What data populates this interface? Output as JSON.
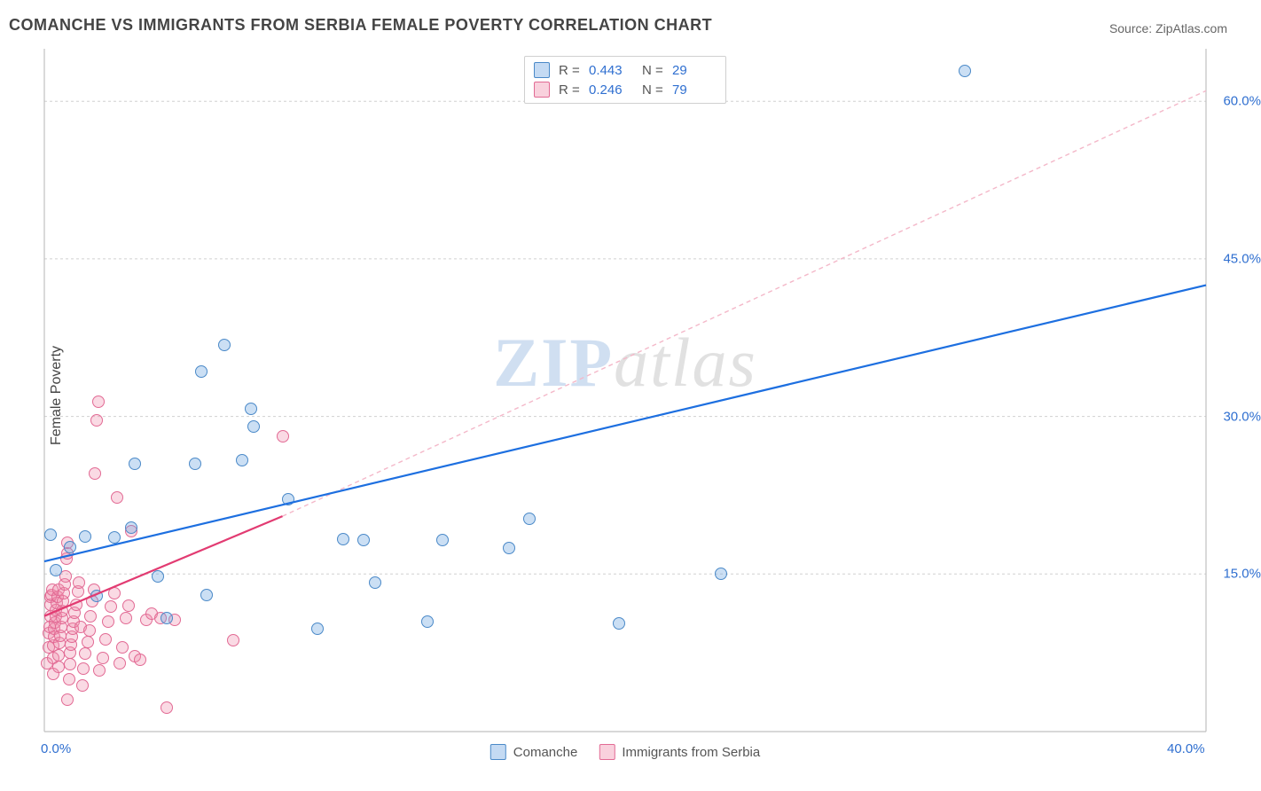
{
  "title": "COMANCHE VS IMMIGRANTS FROM SERBIA FEMALE POVERTY CORRELATION CHART",
  "source_prefix": "Source: ",
  "source_name": "ZipAtlas.com",
  "ylabel": "Female Poverty",
  "watermark_a": "ZIP",
  "watermark_b": "atlas",
  "chart": {
    "type": "scatter",
    "xlim": [
      0,
      40
    ],
    "ylim": [
      0,
      65
    ],
    "yticks": [
      {
        "v": 15,
        "label": "15.0%"
      },
      {
        "v": 30,
        "label": "30.0%"
      },
      {
        "v": 45,
        "label": "45.0%"
      },
      {
        "v": 60,
        "label": "60.0%"
      }
    ],
    "xticks": [
      {
        "v": 0,
        "label": "0.0%"
      },
      {
        "v": 40,
        "label": "40.0%"
      }
    ],
    "series": [
      {
        "name": "Comanche",
        "color_fill": "rgba(107,163,224,0.35)",
        "color_stroke": "#4a89c8",
        "marker_class": "pt-blue",
        "r_value": "0.443",
        "n_value": "29",
        "regression": {
          "x1": 0,
          "y1": 16.2,
          "x2": 40,
          "y2": 42.5,
          "color": "#1d6fe0",
          "width": 2.2,
          "dash": ""
        },
        "extrapolation": null,
        "points": [
          [
            0.2,
            18.7
          ],
          [
            0.4,
            15.4
          ],
          [
            0.9,
            17.6
          ],
          [
            1.4,
            18.6
          ],
          [
            2.4,
            18.5
          ],
          [
            3.0,
            19.4
          ],
          [
            3.1,
            25.5
          ],
          [
            3.9,
            14.8
          ],
          [
            1.8,
            12.9
          ],
          [
            4.2,
            10.8
          ],
          [
            5.2,
            25.5
          ],
          [
            5.4,
            34.3
          ],
          [
            5.6,
            13.0
          ],
          [
            6.2,
            36.8
          ],
          [
            6.8,
            25.8
          ],
          [
            7.1,
            30.7
          ],
          [
            7.2,
            29.0
          ],
          [
            8.4,
            22.1
          ],
          [
            9.4,
            9.8
          ],
          [
            10.3,
            18.3
          ],
          [
            11.0,
            18.2
          ],
          [
            11.4,
            14.2
          ],
          [
            13.2,
            10.5
          ],
          [
            13.7,
            18.2
          ],
          [
            16.0,
            17.5
          ],
          [
            16.7,
            20.3
          ],
          [
            19.8,
            10.3
          ],
          [
            23.3,
            15.0
          ],
          [
            31.7,
            62.9
          ]
        ]
      },
      {
        "name": "Immigrants from Serbia",
        "color_fill": "rgba(240,140,170,0.32)",
        "color_stroke": "#e26a94",
        "marker_class": "pt-pink",
        "r_value": "0.246",
        "n_value": "79",
        "regression": {
          "x1": 0,
          "y1": 11.0,
          "x2": 8.2,
          "y2": 20.5,
          "color": "#e23b72",
          "width": 2.2,
          "dash": ""
        },
        "extrapolation": {
          "x1": 8.2,
          "y1": 20.5,
          "x2": 40,
          "y2": 61.0,
          "color": "#f4b8c9",
          "width": 1.4,
          "dash": "5 4"
        },
        "points": [
          [
            0.1,
            6.5
          ],
          [
            0.15,
            8.0
          ],
          [
            0.15,
            9.4
          ],
          [
            0.18,
            10.0
          ],
          [
            0.2,
            11.0
          ],
          [
            0.2,
            12.1
          ],
          [
            0.22,
            12.8
          ],
          [
            0.25,
            13.0
          ],
          [
            0.28,
            13.5
          ],
          [
            0.3,
            5.5
          ],
          [
            0.3,
            7.0
          ],
          [
            0.32,
            8.2
          ],
          [
            0.35,
            9.0
          ],
          [
            0.35,
            9.8
          ],
          [
            0.38,
            10.4
          ],
          [
            0.4,
            11.0
          ],
          [
            0.4,
            11.6
          ],
          [
            0.42,
            12.2
          ],
          [
            0.45,
            12.8
          ],
          [
            0.48,
            13.5
          ],
          [
            0.5,
            6.2
          ],
          [
            0.5,
            7.3
          ],
          [
            0.52,
            8.4
          ],
          [
            0.55,
            9.1
          ],
          [
            0.58,
            10.0
          ],
          [
            0.6,
            10.8
          ],
          [
            0.62,
            11.5
          ],
          [
            0.65,
            12.4
          ],
          [
            0.68,
            13.2
          ],
          [
            0.7,
            14.0
          ],
          [
            0.72,
            14.8
          ],
          [
            0.75,
            16.5
          ],
          [
            0.78,
            17.0
          ],
          [
            0.8,
            18.0
          ],
          [
            0.8,
            3.0
          ],
          [
            0.85,
            5.0
          ],
          [
            0.88,
            6.4
          ],
          [
            0.9,
            7.5
          ],
          [
            0.92,
            8.3
          ],
          [
            0.95,
            9.0
          ],
          [
            0.98,
            9.8
          ],
          [
            1.0,
            10.5
          ],
          [
            1.05,
            11.3
          ],
          [
            1.1,
            12.1
          ],
          [
            1.15,
            13.3
          ],
          [
            1.2,
            14.2
          ],
          [
            1.25,
            10.0
          ],
          [
            1.3,
            4.4
          ],
          [
            1.35,
            6.0
          ],
          [
            1.4,
            7.4
          ],
          [
            1.5,
            8.5
          ],
          [
            1.55,
            9.6
          ],
          [
            1.6,
            11.0
          ],
          [
            1.65,
            12.4
          ],
          [
            1.7,
            13.5
          ],
          [
            1.75,
            24.6
          ],
          [
            1.8,
            29.6
          ],
          [
            1.85,
            31.4
          ],
          [
            1.9,
            5.8
          ],
          [
            2.0,
            7.0
          ],
          [
            2.1,
            8.8
          ],
          [
            2.2,
            10.5
          ],
          [
            2.3,
            11.9
          ],
          [
            2.4,
            13.2
          ],
          [
            2.5,
            22.3
          ],
          [
            2.6,
            6.5
          ],
          [
            2.7,
            8.0
          ],
          [
            2.8,
            10.8
          ],
          [
            2.9,
            12.0
          ],
          [
            3.0,
            19.1
          ],
          [
            3.1,
            7.2
          ],
          [
            3.3,
            6.8
          ],
          [
            3.5,
            10.6
          ],
          [
            3.7,
            11.2
          ],
          [
            4.0,
            10.8
          ],
          [
            4.2,
            2.3
          ],
          [
            4.5,
            10.6
          ],
          [
            6.5,
            8.7
          ],
          [
            8.2,
            28.1
          ]
        ]
      }
    ]
  },
  "legend_labels": {
    "R": "R =",
    "N": "N ="
  }
}
